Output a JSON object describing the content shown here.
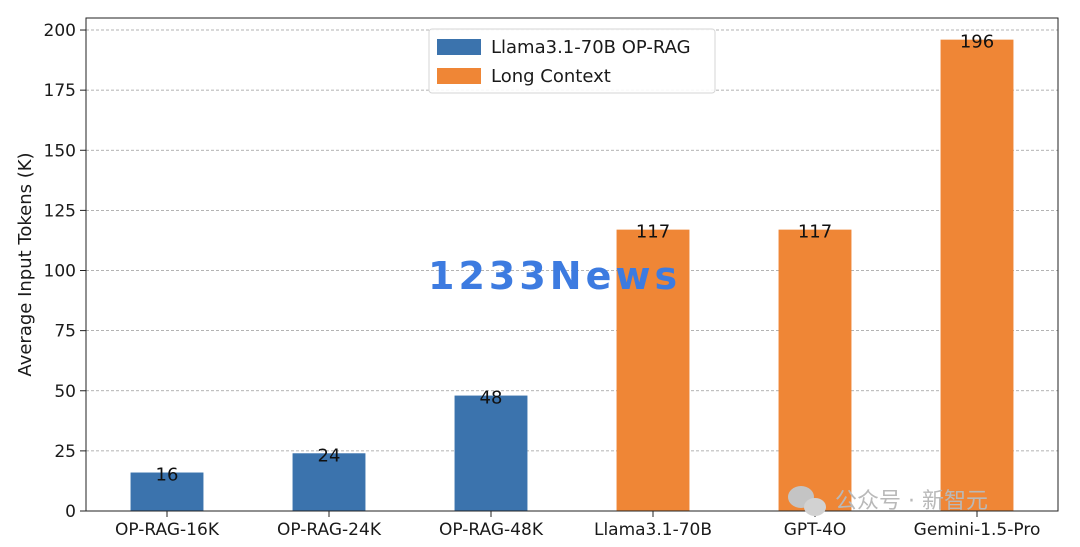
{
  "chart_data": {
    "type": "bar",
    "categories": [
      "OP-RAG-16K",
      "OP-RAG-24K",
      "OP-RAG-48K",
      "Llama3.1-70B",
      "GPT-4O",
      "Gemini-1.5-Pro"
    ],
    "values": [
      16,
      24,
      48,
      117,
      117,
      196
    ],
    "data_labels": [
      "16",
      "24",
      "48",
      "117",
      "117",
      "196"
    ],
    "bar_series": [
      0,
      0,
      0,
      1,
      1,
      1
    ],
    "series": [
      {
        "name": "Llama3.1-70B OP-RAG",
        "color": "#3b73ad"
      },
      {
        "name": "Long Context",
        "color": "#ef8636"
      }
    ],
    "title": "",
    "xlabel": "",
    "ylabel": "Average Input Tokens (K)",
    "ylim": [
      0,
      205
    ],
    "yticks": [
      0,
      25,
      50,
      75,
      100,
      125,
      150,
      175,
      200
    ],
    "grid": "horizontal-dashed",
    "legend_position": "top-center"
  },
  "watermark": {
    "text": "1233News",
    "icon": "news-watermark"
  },
  "wechat_mark": {
    "text": "公众号 · 新智元",
    "icon": "wechat-icon"
  }
}
